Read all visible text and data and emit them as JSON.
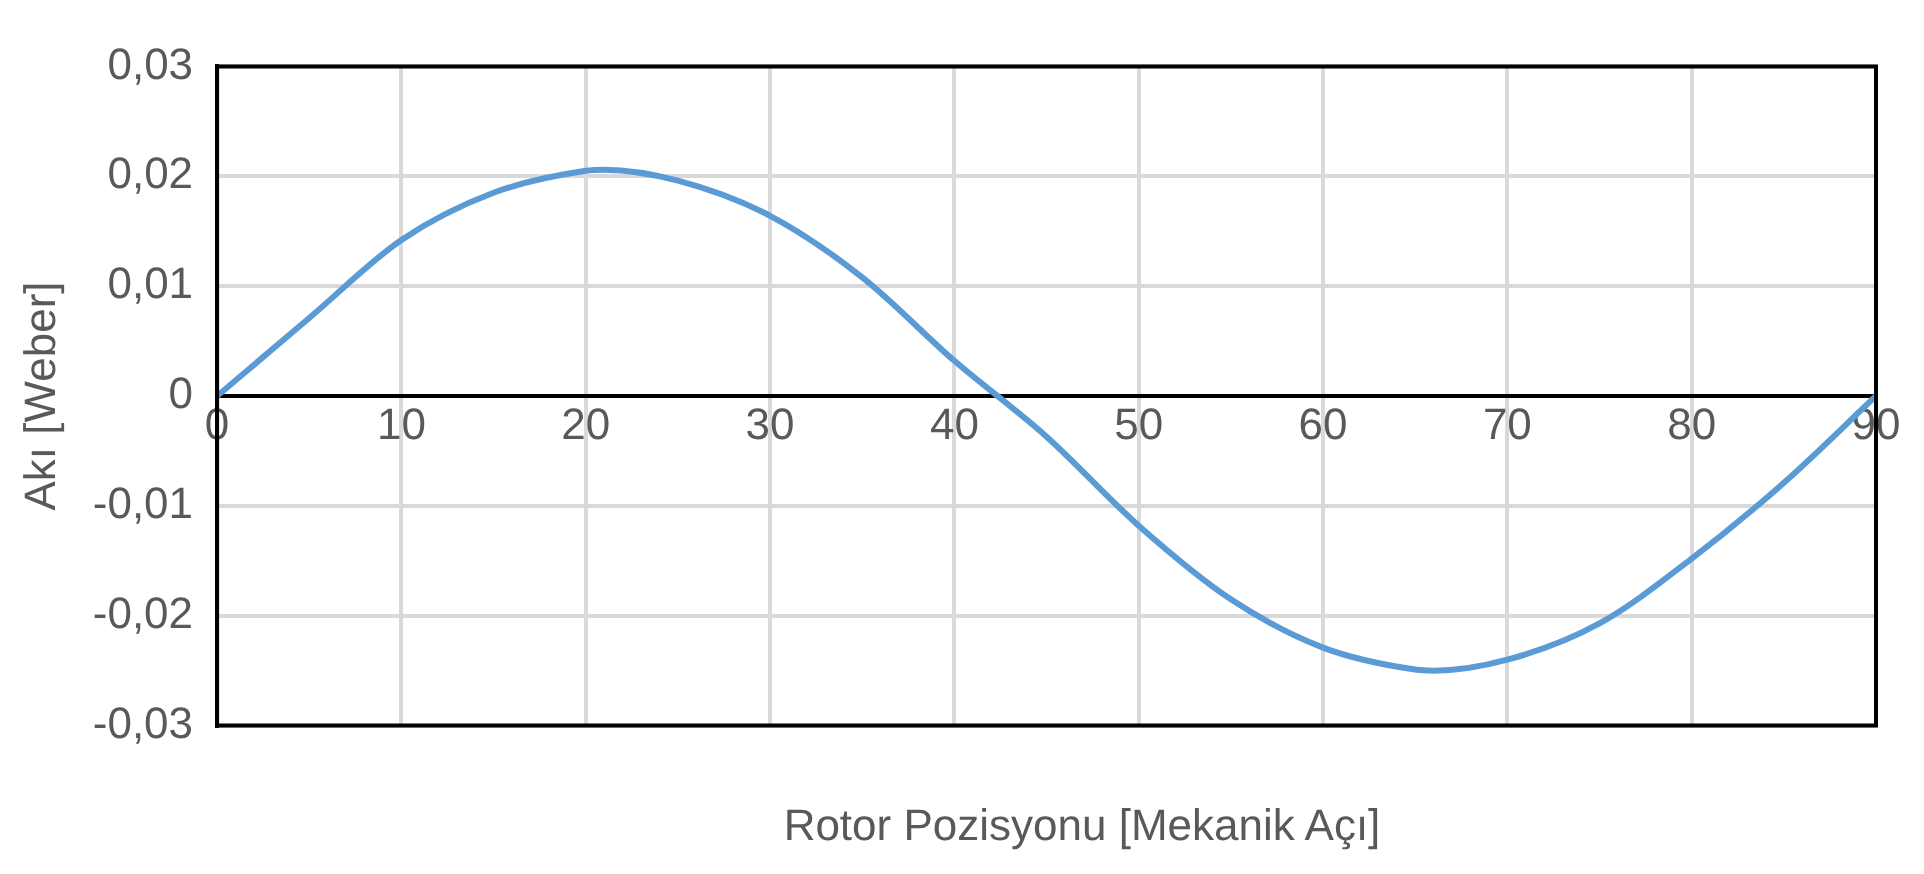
{
  "chart_data": {
    "type": "line",
    "xlabel": "Rotor Pozisyonu [Mekanik Açı]",
    "ylabel": "Akı [Weber]",
    "x": [
      0,
      5,
      10,
      15,
      20,
      21,
      25,
      30,
      35,
      40,
      45,
      50,
      55,
      60,
      65,
      66,
      70,
      75,
      80,
      85,
      90
    ],
    "series": [
      {
        "color": "#5b9bd5",
        "values": [
          0,
          0.0071,
          0.0142,
          0.0185,
          0.0205,
          0.0206,
          0.0196,
          0.0164,
          0.0108,
          0.0032,
          -0.0037,
          -0.0118,
          -0.0185,
          -0.0229,
          -0.0249,
          -0.025,
          -0.024,
          -0.0207,
          -0.0148,
          -0.0079,
          0
        ]
      }
    ],
    "xlim": [
      0,
      90
    ],
    "xticks": [
      0,
      10,
      20,
      30,
      40,
      50,
      60,
      70,
      80,
      90
    ],
    "ylim": [
      -0.03,
      0.03
    ],
    "yticks": [
      {
        "value": -0.03,
        "label": "-0,03"
      },
      {
        "value": -0.02,
        "label": "-0,02"
      },
      {
        "value": -0.01,
        "label": "-0,01"
      },
      0,
      {
        "value": 0.01,
        "label": "0,01"
      },
      {
        "value": 0.02,
        "label": "0,02"
      },
      {
        "value": 0.03,
        "label": "0,03"
      }
    ],
    "grid": true,
    "legend": false,
    "marker": "none",
    "line_style": "solid"
  }
}
